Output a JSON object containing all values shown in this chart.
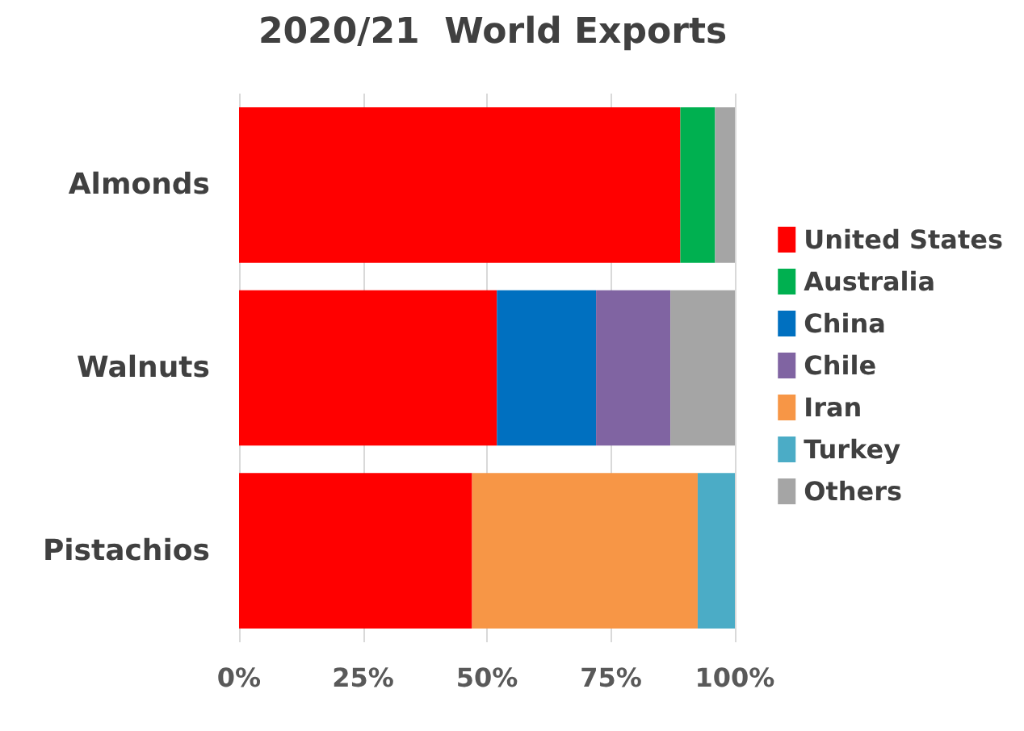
{
  "chart_data": {
    "type": "bar",
    "title": "2020/21  World Exports",
    "orientation": "horizontal",
    "stacked": true,
    "categories": [
      "Almonds",
      "Walnuts",
      "Pistachios"
    ],
    "series": [
      {
        "name": "United States",
        "color": "#ff0000",
        "values": [
          89,
          52,
          47
        ]
      },
      {
        "name": "Australia",
        "color": "#00b050",
        "values": [
          7,
          null,
          null
        ]
      },
      {
        "name": "China",
        "color": "#0070c0",
        "values": [
          null,
          20,
          null
        ]
      },
      {
        "name": "Chile",
        "color": "#8064a2",
        "values": [
          null,
          15,
          null
        ]
      },
      {
        "name": "Iran",
        "color": "#f79646",
        "values": [
          null,
          null,
          45.5
        ]
      },
      {
        "name": "Turkey",
        "color": "#4bacc6",
        "values": [
          null,
          null,
          7.5
        ]
      },
      {
        "name": "Others",
        "color": "#a5a5a5",
        "values": [
          4,
          13,
          null
        ]
      }
    ],
    "xlim": [
      0,
      100
    ],
    "xticks": [
      {
        "value": 0,
        "label": "0%"
      },
      {
        "value": 25,
        "label": "25%"
      },
      {
        "value": 50,
        "label": "50%"
      },
      {
        "value": 75,
        "label": "75%"
      },
      {
        "value": 100,
        "label": "100%"
      }
    ],
    "grid": "x",
    "legend": "right"
  }
}
